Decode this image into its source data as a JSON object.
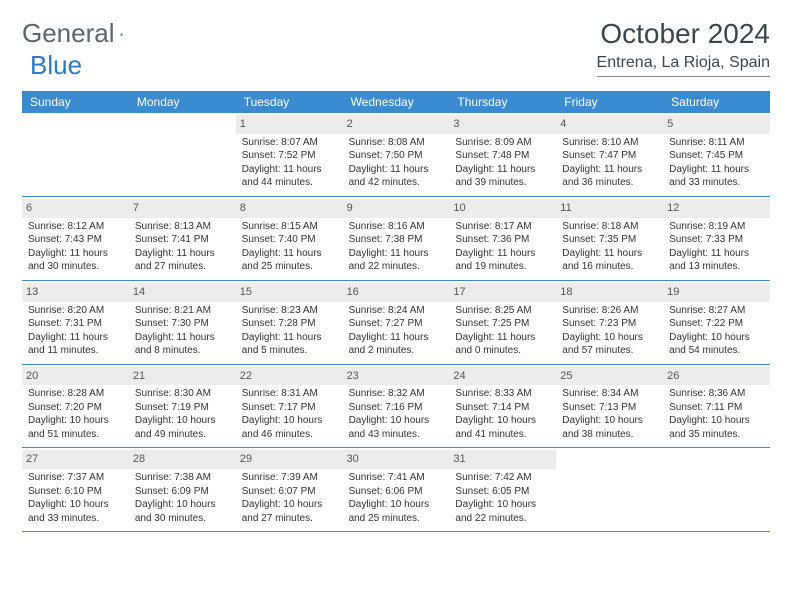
{
  "logo": {
    "word1": "General",
    "word2": "Blue"
  },
  "title": "October 2024",
  "subtitle": "Entrena, La Rioja, Spain",
  "colors": {
    "header_bg": "#3a8bd0",
    "header_text": "#ffffff",
    "daynum_bg": "#ececec",
    "row_border": "#3a8bd0",
    "logo_gray": "#5c6670",
    "logo_blue": "#2b7ac2",
    "body_text": "#333333"
  },
  "dayNames": [
    "Sunday",
    "Monday",
    "Tuesday",
    "Wednesday",
    "Thursday",
    "Friday",
    "Saturday"
  ],
  "weeks": [
    [
      null,
      null,
      {
        "n": "1",
        "sr": "8:07 AM",
        "ss": "7:52 PM",
        "dl": "11 hours and 44 minutes."
      },
      {
        "n": "2",
        "sr": "8:08 AM",
        "ss": "7:50 PM",
        "dl": "11 hours and 42 minutes."
      },
      {
        "n": "3",
        "sr": "8:09 AM",
        "ss": "7:48 PM",
        "dl": "11 hours and 39 minutes."
      },
      {
        "n": "4",
        "sr": "8:10 AM",
        "ss": "7:47 PM",
        "dl": "11 hours and 36 minutes."
      },
      {
        "n": "5",
        "sr": "8:11 AM",
        "ss": "7:45 PM",
        "dl": "11 hours and 33 minutes."
      }
    ],
    [
      {
        "n": "6",
        "sr": "8:12 AM",
        "ss": "7:43 PM",
        "dl": "11 hours and 30 minutes."
      },
      {
        "n": "7",
        "sr": "8:13 AM",
        "ss": "7:41 PM",
        "dl": "11 hours and 27 minutes."
      },
      {
        "n": "8",
        "sr": "8:15 AM",
        "ss": "7:40 PM",
        "dl": "11 hours and 25 minutes."
      },
      {
        "n": "9",
        "sr": "8:16 AM",
        "ss": "7:38 PM",
        "dl": "11 hours and 22 minutes."
      },
      {
        "n": "10",
        "sr": "8:17 AM",
        "ss": "7:36 PM",
        "dl": "11 hours and 19 minutes."
      },
      {
        "n": "11",
        "sr": "8:18 AM",
        "ss": "7:35 PM",
        "dl": "11 hours and 16 minutes."
      },
      {
        "n": "12",
        "sr": "8:19 AM",
        "ss": "7:33 PM",
        "dl": "11 hours and 13 minutes."
      }
    ],
    [
      {
        "n": "13",
        "sr": "8:20 AM",
        "ss": "7:31 PM",
        "dl": "11 hours and 11 minutes."
      },
      {
        "n": "14",
        "sr": "8:21 AM",
        "ss": "7:30 PM",
        "dl": "11 hours and 8 minutes."
      },
      {
        "n": "15",
        "sr": "8:23 AM",
        "ss": "7:28 PM",
        "dl": "11 hours and 5 minutes."
      },
      {
        "n": "16",
        "sr": "8:24 AM",
        "ss": "7:27 PM",
        "dl": "11 hours and 2 minutes."
      },
      {
        "n": "17",
        "sr": "8:25 AM",
        "ss": "7:25 PM",
        "dl": "11 hours and 0 minutes."
      },
      {
        "n": "18",
        "sr": "8:26 AM",
        "ss": "7:23 PM",
        "dl": "10 hours and 57 minutes."
      },
      {
        "n": "19",
        "sr": "8:27 AM",
        "ss": "7:22 PM",
        "dl": "10 hours and 54 minutes."
      }
    ],
    [
      {
        "n": "20",
        "sr": "8:28 AM",
        "ss": "7:20 PM",
        "dl": "10 hours and 51 minutes."
      },
      {
        "n": "21",
        "sr": "8:30 AM",
        "ss": "7:19 PM",
        "dl": "10 hours and 49 minutes."
      },
      {
        "n": "22",
        "sr": "8:31 AM",
        "ss": "7:17 PM",
        "dl": "10 hours and 46 minutes."
      },
      {
        "n": "23",
        "sr": "8:32 AM",
        "ss": "7:16 PM",
        "dl": "10 hours and 43 minutes."
      },
      {
        "n": "24",
        "sr": "8:33 AM",
        "ss": "7:14 PM",
        "dl": "10 hours and 41 minutes."
      },
      {
        "n": "25",
        "sr": "8:34 AM",
        "ss": "7:13 PM",
        "dl": "10 hours and 38 minutes."
      },
      {
        "n": "26",
        "sr": "8:36 AM",
        "ss": "7:11 PM",
        "dl": "10 hours and 35 minutes."
      }
    ],
    [
      {
        "n": "27",
        "sr": "7:37 AM",
        "ss": "6:10 PM",
        "dl": "10 hours and 33 minutes."
      },
      {
        "n": "28",
        "sr": "7:38 AM",
        "ss": "6:09 PM",
        "dl": "10 hours and 30 minutes."
      },
      {
        "n": "29",
        "sr": "7:39 AM",
        "ss": "6:07 PM",
        "dl": "10 hours and 27 minutes."
      },
      {
        "n": "30",
        "sr": "7:41 AM",
        "ss": "6:06 PM",
        "dl": "10 hours and 25 minutes."
      },
      {
        "n": "31",
        "sr": "7:42 AM",
        "ss": "6:05 PM",
        "dl": "10 hours and 22 minutes."
      },
      null,
      null
    ]
  ],
  "labels": {
    "sunrise": "Sunrise:",
    "sunset": "Sunset:",
    "daylight": "Daylight:"
  }
}
